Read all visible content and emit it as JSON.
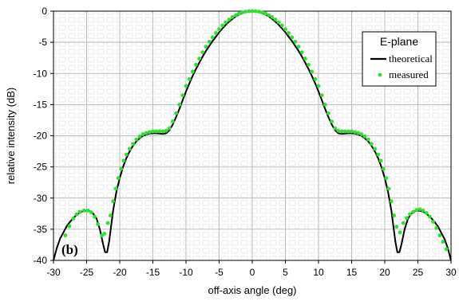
{
  "chart_data": {
    "type": "line",
    "title": "",
    "xlabel": "off-axis angle (deg)",
    "ylabel": "relative intensity (dB)",
    "xlim": [
      -30,
      30
    ],
    "ylim": [
      -40,
      0
    ],
    "xticks": [
      -30,
      -25,
      -20,
      -15,
      -10,
      -5,
      0,
      5,
      10,
      15,
      20,
      25,
      30
    ],
    "yticks": [
      0,
      -5,
      -10,
      -15,
      -20,
      -25,
      -30,
      -35,
      -40
    ],
    "grid": true,
    "legend": {
      "title": "E-plane",
      "placement": "top-right",
      "entries": [
        {
          "label": "theoretical",
          "style": "line",
          "color": "#000000"
        },
        {
          "label": "measured",
          "style": "markers",
          "color": "#33dd33"
        }
      ]
    },
    "annotation": "(b)",
    "series": [
      {
        "name": "theoretical",
        "style": "line",
        "color": "#000000",
        "points": [
          [
            -30,
            -40
          ],
          [
            -29.5,
            -38
          ],
          [
            -29,
            -36.5
          ],
          [
            -28.5,
            -35.5
          ],
          [
            -28,
            -34.5
          ],
          [
            -27.5,
            -33.8
          ],
          [
            -27,
            -33.2
          ],
          [
            -26.5,
            -32.7
          ],
          [
            -26,
            -32.3
          ],
          [
            -25.5,
            -32.1
          ],
          [
            -25,
            -32
          ],
          [
            -24.5,
            -32.1
          ],
          [
            -24,
            -32.5
          ],
          [
            -23.5,
            -33.3
          ],
          [
            -23,
            -35
          ],
          [
            -22.5,
            -37.5
          ],
          [
            -22.2,
            -38.7
          ],
          [
            -21.9,
            -38.7
          ],
          [
            -21.6,
            -37
          ],
          [
            -21.3,
            -34.5
          ],
          [
            -21,
            -32
          ],
          [
            -20.5,
            -29
          ],
          [
            -20,
            -26.8
          ],
          [
            -19.5,
            -25
          ],
          [
            -19,
            -23.6
          ],
          [
            -18.5,
            -22.5
          ],
          [
            -18,
            -21.6
          ],
          [
            -17.5,
            -20.9
          ],
          [
            -17,
            -20.4
          ],
          [
            -16.5,
            -20.0
          ],
          [
            -16,
            -19.8
          ],
          [
            -15.5,
            -19.65
          ],
          [
            -15,
            -19.6
          ],
          [
            -14.5,
            -19.6
          ],
          [
            -14,
            -19.65
          ],
          [
            -13.5,
            -19.7
          ],
          [
            -13,
            -19.6
          ],
          [
            -12.5,
            -19.1
          ],
          [
            -12,
            -18.2
          ],
          [
            -11.5,
            -17.0
          ],
          [
            -11,
            -15.7
          ],
          [
            -10.5,
            -14.3
          ],
          [
            -10,
            -12.9
          ],
          [
            -9.5,
            -11.6
          ],
          [
            -9,
            -10.4
          ],
          [
            -8.5,
            -9.3
          ],
          [
            -8,
            -8.3
          ],
          [
            -7.5,
            -7.3
          ],
          [
            -7,
            -6.4
          ],
          [
            -6.5,
            -5.6
          ],
          [
            -6,
            -4.8
          ],
          [
            -5.5,
            -4.1
          ],
          [
            -5,
            -3.4
          ],
          [
            -4.5,
            -2.8
          ],
          [
            -4,
            -2.2
          ],
          [
            -3.5,
            -1.7
          ],
          [
            -3,
            -1.25
          ],
          [
            -2.5,
            -0.85
          ],
          [
            -2,
            -0.55
          ],
          [
            -1.5,
            -0.3
          ],
          [
            -1,
            -0.13
          ],
          [
            -0.5,
            -0.03
          ],
          [
            0,
            0
          ],
          [
            0.5,
            -0.03
          ],
          [
            1,
            -0.13
          ],
          [
            1.5,
            -0.3
          ],
          [
            2,
            -0.55
          ],
          [
            2.5,
            -0.85
          ],
          [
            3,
            -1.25
          ],
          [
            3.5,
            -1.7
          ],
          [
            4,
            -2.2
          ],
          [
            4.5,
            -2.8
          ],
          [
            5,
            -3.4
          ],
          [
            5.5,
            -4.1
          ],
          [
            6,
            -4.8
          ],
          [
            6.5,
            -5.6
          ],
          [
            7,
            -6.4
          ],
          [
            7.5,
            -7.3
          ],
          [
            8,
            -8.3
          ],
          [
            8.5,
            -9.3
          ],
          [
            9,
            -10.4
          ],
          [
            9.5,
            -11.6
          ],
          [
            10,
            -12.9
          ],
          [
            10.5,
            -14.3
          ],
          [
            11,
            -15.7
          ],
          [
            11.5,
            -17.0
          ],
          [
            12,
            -18.2
          ],
          [
            12.5,
            -19.1
          ],
          [
            13,
            -19.6
          ],
          [
            13.5,
            -19.7
          ],
          [
            14,
            -19.65
          ],
          [
            14.5,
            -19.6
          ],
          [
            15,
            -19.6
          ],
          [
            15.5,
            -19.65
          ],
          [
            16,
            -19.8
          ],
          [
            16.5,
            -20.0
          ],
          [
            17,
            -20.4
          ],
          [
            17.5,
            -20.9
          ],
          [
            18,
            -21.6
          ],
          [
            18.5,
            -22.5
          ],
          [
            19,
            -23.6
          ],
          [
            19.5,
            -25
          ],
          [
            20,
            -26.8
          ],
          [
            20.5,
            -29
          ],
          [
            21,
            -32
          ],
          [
            21.3,
            -34.5
          ],
          [
            21.6,
            -37
          ],
          [
            21.9,
            -38.7
          ],
          [
            22.2,
            -38.7
          ],
          [
            22.5,
            -37.5
          ],
          [
            23,
            -35
          ],
          [
            23.5,
            -33.3
          ],
          [
            24,
            -32.5
          ],
          [
            24.5,
            -32.1
          ],
          [
            25,
            -32
          ],
          [
            25.5,
            -32.1
          ],
          [
            26,
            -32.3
          ],
          [
            26.5,
            -32.7
          ],
          [
            27,
            -33.2
          ],
          [
            27.5,
            -33.8
          ],
          [
            28,
            -34.5
          ],
          [
            28.5,
            -35.5
          ],
          [
            29,
            -36.5
          ],
          [
            29.5,
            -38
          ],
          [
            30,
            -40
          ]
        ]
      },
      {
        "name": "measured",
        "style": "markers",
        "color": "#33dd33",
        "points": [
          [
            -28.2,
            -36
          ],
          [
            -27.6,
            -34.5
          ],
          [
            -27,
            -33.3
          ],
          [
            -26.5,
            -32.6
          ],
          [
            -26,
            -32.2
          ],
          [
            -25.4,
            -32
          ],
          [
            -24.8,
            -32
          ],
          [
            -24.3,
            -32.3
          ],
          [
            -23.8,
            -33
          ],
          [
            -23.3,
            -34.2
          ],
          [
            -22.7,
            -36
          ],
          [
            -22.3,
            -35.7
          ],
          [
            -21.8,
            -34
          ],
          [
            -21.4,
            -32.8
          ],
          [
            -21,
            -30.5
          ],
          [
            -20.6,
            -28.5
          ],
          [
            -20.2,
            -26.8
          ],
          [
            -19.8,
            -25.3
          ],
          [
            -19.4,
            -24
          ],
          [
            -19,
            -23
          ],
          [
            -18.5,
            -22.1
          ],
          [
            -18,
            -21.3
          ],
          [
            -17.5,
            -20.6
          ],
          [
            -17,
            -20.1
          ],
          [
            -16.5,
            -19.75
          ],
          [
            -16,
            -19.55
          ],
          [
            -15.5,
            -19.4
          ],
          [
            -15,
            -19.3
          ],
          [
            -14.5,
            -19.3
          ],
          [
            -14,
            -19.3
          ],
          [
            -13.5,
            -19.3
          ],
          [
            -13,
            -19.2
          ],
          [
            -12.5,
            -18.8
          ],
          [
            -12,
            -17.7
          ],
          [
            -11.5,
            -16.4
          ],
          [
            -11,
            -15
          ],
          [
            -10.5,
            -13.5
          ],
          [
            -10,
            -12
          ],
          [
            -9.5,
            -10.9
          ],
          [
            -9,
            -9.7
          ],
          [
            -8.5,
            -8.6
          ],
          [
            -8,
            -7.6
          ],
          [
            -7.5,
            -6.6
          ],
          [
            -7,
            -5.7
          ],
          [
            -6.5,
            -4.9
          ],
          [
            -6,
            -4.2
          ],
          [
            -5.5,
            -3.5
          ],
          [
            -5,
            -2.9
          ],
          [
            -4.5,
            -2.3
          ],
          [
            -4,
            -1.8
          ],
          [
            -3.5,
            -1.35
          ],
          [
            -3,
            -0.95
          ],
          [
            -2.5,
            -0.65
          ],
          [
            -2,
            -0.4
          ],
          [
            -1.5,
            -0.2
          ],
          [
            -1,
            -0.08
          ],
          [
            -0.5,
            -0.02
          ],
          [
            0,
            0
          ],
          [
            0.5,
            -0.02
          ],
          [
            1,
            -0.08
          ],
          [
            1.5,
            -0.2
          ],
          [
            2,
            -0.4
          ],
          [
            2.5,
            -0.65
          ],
          [
            3,
            -0.95
          ],
          [
            3.5,
            -1.35
          ],
          [
            4,
            -1.8
          ],
          [
            4.5,
            -2.3
          ],
          [
            5,
            -2.9
          ],
          [
            5.5,
            -3.5
          ],
          [
            6,
            -4.2
          ],
          [
            6.5,
            -4.9
          ],
          [
            7,
            -5.7
          ],
          [
            7.5,
            -6.6
          ],
          [
            8,
            -7.6
          ],
          [
            8.5,
            -8.6
          ],
          [
            9,
            -9.7
          ],
          [
            9.5,
            -10.9
          ],
          [
            10,
            -12
          ],
          [
            10.5,
            -13.5
          ],
          [
            11,
            -15
          ],
          [
            11.5,
            -16.4
          ],
          [
            12,
            -17.7
          ],
          [
            12.5,
            -18.8
          ],
          [
            13,
            -19.2
          ],
          [
            13.5,
            -19.3
          ],
          [
            14,
            -19.3
          ],
          [
            14.5,
            -19.3
          ],
          [
            15,
            -19.3
          ],
          [
            15.5,
            -19.4
          ],
          [
            16,
            -19.55
          ],
          [
            16.5,
            -19.75
          ],
          [
            17,
            -20.1
          ],
          [
            17.5,
            -20.6
          ],
          [
            18,
            -21.3
          ],
          [
            18.5,
            -22.1
          ],
          [
            19,
            -23
          ],
          [
            19.4,
            -24
          ],
          [
            19.8,
            -25.3
          ],
          [
            20.2,
            -26.8
          ],
          [
            20.6,
            -28.5
          ],
          [
            21,
            -30.5
          ],
          [
            21.4,
            -32.8
          ],
          [
            21.8,
            -34.6
          ],
          [
            22.3,
            -35.5
          ],
          [
            22.8,
            -34
          ],
          [
            23.3,
            -33.2
          ],
          [
            23.8,
            -32.6
          ],
          [
            24.3,
            -32.2
          ],
          [
            24.8,
            -31.9
          ],
          [
            25.3,
            -31.8
          ],
          [
            25.8,
            -32
          ],
          [
            26.3,
            -32.4
          ],
          [
            26.8,
            -33
          ],
          [
            27.3,
            -33.8
          ],
          [
            27.8,
            -34.8
          ],
          [
            28.3,
            -36
          ],
          [
            28.8,
            -37
          ],
          [
            29.3,
            -38.2
          ]
        ]
      }
    ]
  }
}
